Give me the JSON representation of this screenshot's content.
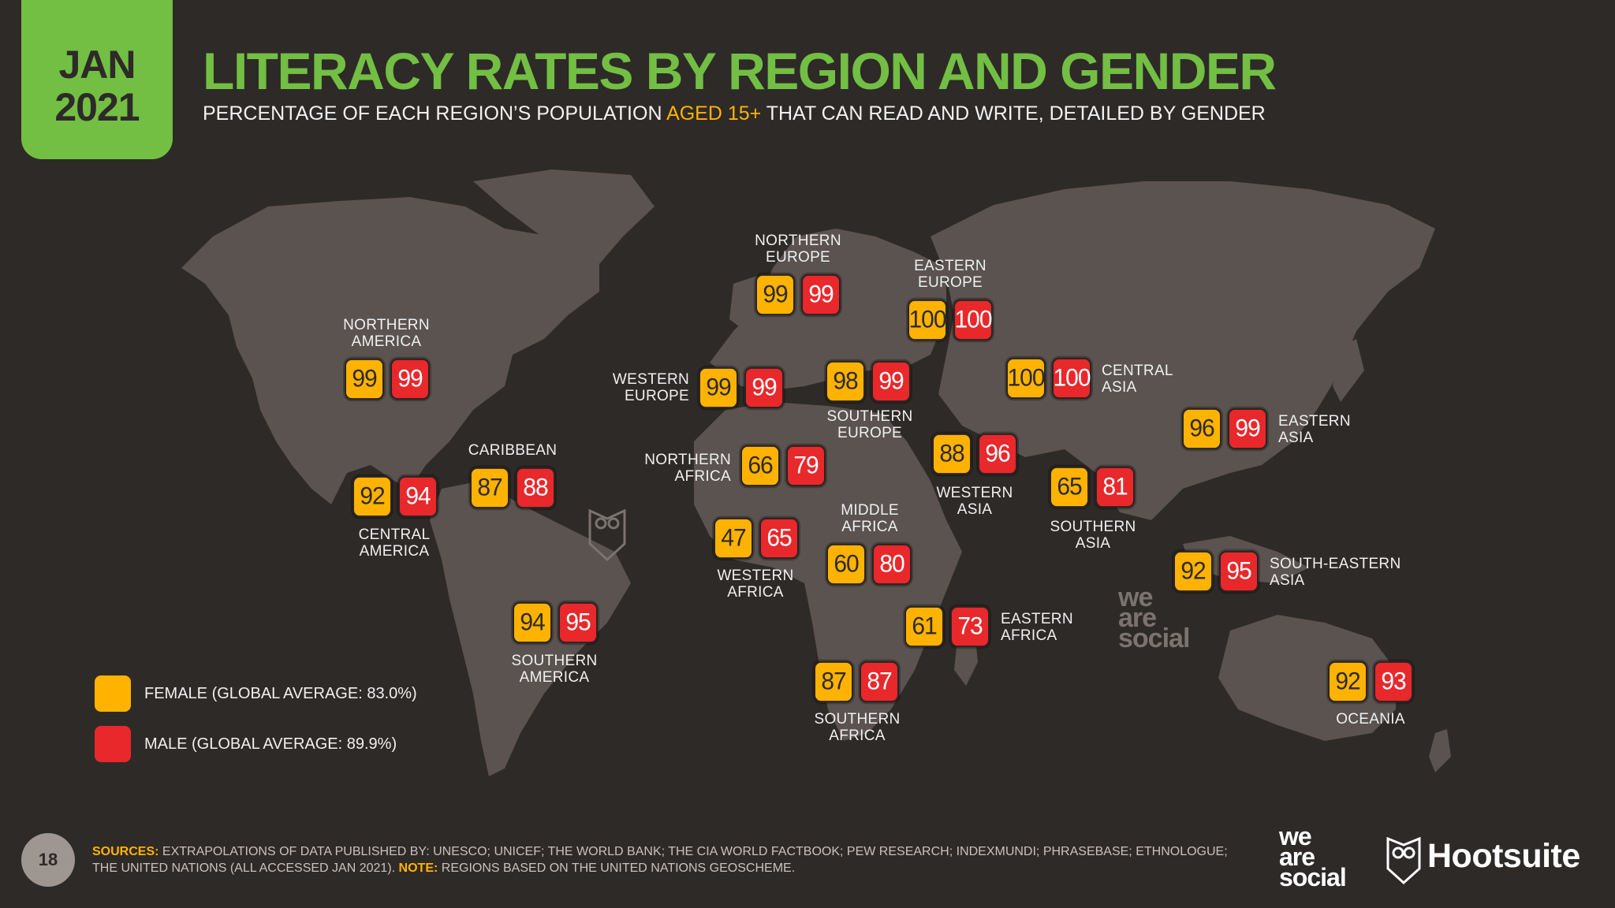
{
  "header": {
    "date_month": "JAN",
    "date_year": "2021",
    "title": "LITERACY RATES BY REGION AND GENDER",
    "subtitle_pre": "PERCENTAGE OF EACH REGION’S POPULATION ",
    "subtitle_hl": "AGED 15+",
    "subtitle_post": " THAT CAN READ AND WRITE, DETAILED BY GENDER"
  },
  "colors": {
    "female": "#ffb300",
    "male": "#e8282b",
    "accent": "#72bf44",
    "background": "#2e2a28",
    "land": "#5a5350"
  },
  "chart_data": {
    "type": "table",
    "title": "LITERACY RATES BY REGION AND GENDER",
    "series_names": [
      "FEMALE",
      "MALE"
    ],
    "regions": [
      {
        "name": "NORTHERN AMERICA",
        "label_lines": [
          "NORTHERN",
          "AMERICA"
        ],
        "female": 99,
        "male": 99
      },
      {
        "name": "CENTRAL AMERICA",
        "label_lines": [
          "CENTRAL",
          "AMERICA"
        ],
        "female": 92,
        "male": 94
      },
      {
        "name": "CARIBBEAN",
        "label_lines": [
          "CARIBBEAN"
        ],
        "female": 87,
        "male": 88
      },
      {
        "name": "SOUTHERN AMERICA",
        "label_lines": [
          "SOUTHERN",
          "AMERICA"
        ],
        "female": 94,
        "male": 95
      },
      {
        "name": "NORTHERN EUROPE",
        "label_lines": [
          "NORTHERN",
          "EUROPE"
        ],
        "female": 99,
        "male": 99
      },
      {
        "name": "WESTERN EUROPE",
        "label_lines": [
          "WESTERN",
          "EUROPE"
        ],
        "female": 99,
        "male": 99
      },
      {
        "name": "SOUTHERN EUROPE",
        "label_lines": [
          "SOUTHERN",
          "EUROPE"
        ],
        "female": 98,
        "male": 99
      },
      {
        "name": "EASTERN EUROPE",
        "label_lines": [
          "EASTERN",
          "EUROPE"
        ],
        "female": 100,
        "male": 100
      },
      {
        "name": "NORTHERN AFRICA",
        "label_lines": [
          "NORTHERN",
          "AFRICA"
        ],
        "female": 66,
        "male": 79
      },
      {
        "name": "WESTERN AFRICA",
        "label_lines": [
          "WESTERN",
          "AFRICA"
        ],
        "female": 47,
        "male": 65
      },
      {
        "name": "MIDDLE AFRICA",
        "label_lines": [
          "MIDDLE",
          "AFRICA"
        ],
        "female": 60,
        "male": 80
      },
      {
        "name": "EASTERN AFRICA",
        "label_lines": [
          "EASTERN",
          "AFRICA"
        ],
        "female": 61,
        "male": 73
      },
      {
        "name": "SOUTHERN AFRICA",
        "label_lines": [
          "SOUTHERN",
          "AFRICA"
        ],
        "female": 87,
        "male": 87
      },
      {
        "name": "WESTERN ASIA",
        "label_lines": [
          "WESTERN",
          "ASIA"
        ],
        "female": 88,
        "male": 96
      },
      {
        "name": "CENTRAL ASIA",
        "label_lines": [
          "CENTRAL",
          "ASIA"
        ],
        "female": 100,
        "male": 100
      },
      {
        "name": "SOUTHERN ASIA",
        "label_lines": [
          "SOUTHERN",
          "ASIA"
        ],
        "female": 65,
        "male": 81
      },
      {
        "name": "EASTERN ASIA",
        "label_lines": [
          "EASTERN",
          "ASIA"
        ],
        "female": 96,
        "male": 99
      },
      {
        "name": "SOUTH-EASTERN ASIA",
        "label_lines": [
          "SOUTH-EASTERN",
          "ASIA"
        ],
        "female": 92,
        "male": 95
      },
      {
        "name": "OCEANIA",
        "label_lines": [
          "OCEANIA"
        ],
        "female": 92,
        "male": 93
      }
    ]
  },
  "legend": {
    "female": "FEMALE (GLOBAL AVERAGE: 83.0%)",
    "male": "MALE (GLOBAL AVERAGE: 89.9%)"
  },
  "footer": {
    "page_number": "18",
    "sources_key": "SOURCES:",
    "sources_text": " EXTRAPOLATIONS OF DATA PUBLISHED BY: UNESCO; UNICEF; THE WORLD BANK; THE CIA WORLD FACTBOOK; PEW RESEARCH; INDEXMUNDI; PHRASEBASE; ETHNOLOGUE; THE UNITED NATIONS (ALL ACCESSED JAN 2021). ",
    "note_key": "NOTE:",
    "note_text": " REGIONS BASED ON THE UNITED NATIONS GEOSCHEME.",
    "brand_we": "we",
    "brand_are": "are",
    "brand_social": "social",
    "brand_hootsuite": "Hootsuite"
  }
}
